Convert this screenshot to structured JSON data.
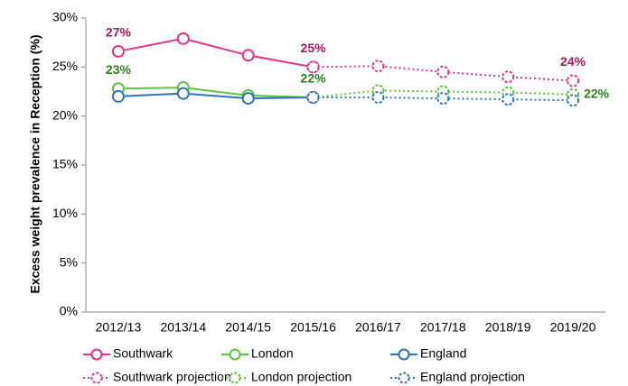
{
  "chart_data": {
    "type": "line",
    "y_label": "Excess weight prevalence in Reception (%)",
    "categories": [
      "2012/13",
      "2013/14",
      "2014/15",
      "2015/16",
      "2016/17",
      "2017/18",
      "2018/19",
      "2019/20"
    ],
    "ylim": [
      0,
      30
    ],
    "yticks": [
      {
        "value": 0,
        "label": "0%"
      },
      {
        "value": 5,
        "label": "5%"
      },
      {
        "value": 10,
        "label": "10%"
      },
      {
        "value": 15,
        "label": "15%"
      },
      {
        "value": 20,
        "label": "20%"
      },
      {
        "value": 25,
        "label": "25%"
      },
      {
        "value": 30,
        "label": "30%"
      }
    ],
    "series": [
      {
        "name": "Southwark",
        "color": "#e0338a",
        "label_color": "#a3175c",
        "dash": "solid",
        "values": [
          26.6,
          27.9,
          26.2,
          25.0,
          null,
          null,
          null,
          null
        ],
        "value_labels": [
          "27%",
          null,
          null,
          "25%",
          null,
          null,
          null,
          null
        ]
      },
      {
        "name": "London",
        "color": "#5cc23f",
        "label_color": "#2f7d24",
        "dash": "solid",
        "values": [
          22.8,
          22.9,
          22.1,
          21.9,
          null,
          null,
          null,
          null
        ],
        "value_labels": [
          "23%",
          null,
          null,
          "22%",
          null,
          null,
          null,
          null
        ]
      },
      {
        "name": "England",
        "color": "#2e75b6",
        "label_color": "#1f4e79",
        "dash": "solid",
        "values": [
          22.0,
          22.3,
          21.8,
          21.9,
          null,
          null,
          null,
          null
        ]
      },
      {
        "name": "Southwark projection",
        "color": "#e0338a",
        "label_color": "#a3175c",
        "dash": "dotted",
        "values": [
          null,
          null,
          null,
          25.0,
          25.1,
          24.5,
          24.0,
          23.6
        ],
        "value_labels": [
          null,
          null,
          null,
          null,
          null,
          null,
          null,
          "24%"
        ]
      },
      {
        "name": "London projection",
        "color": "#5cc23f",
        "label_color": "#2f7d24",
        "dash": "dotted",
        "values": [
          null,
          null,
          null,
          21.9,
          22.6,
          22.5,
          22.4,
          22.2
        ],
        "value_labels": [
          null,
          null,
          null,
          null,
          null,
          null,
          null,
          "22%"
        ]
      },
      {
        "name": "England projection",
        "color": "#2e75b6",
        "label_color": "#1f4e79",
        "dash": "dotted",
        "values": [
          null,
          null,
          null,
          21.9,
          21.9,
          21.8,
          21.7,
          21.6
        ]
      }
    ]
  }
}
